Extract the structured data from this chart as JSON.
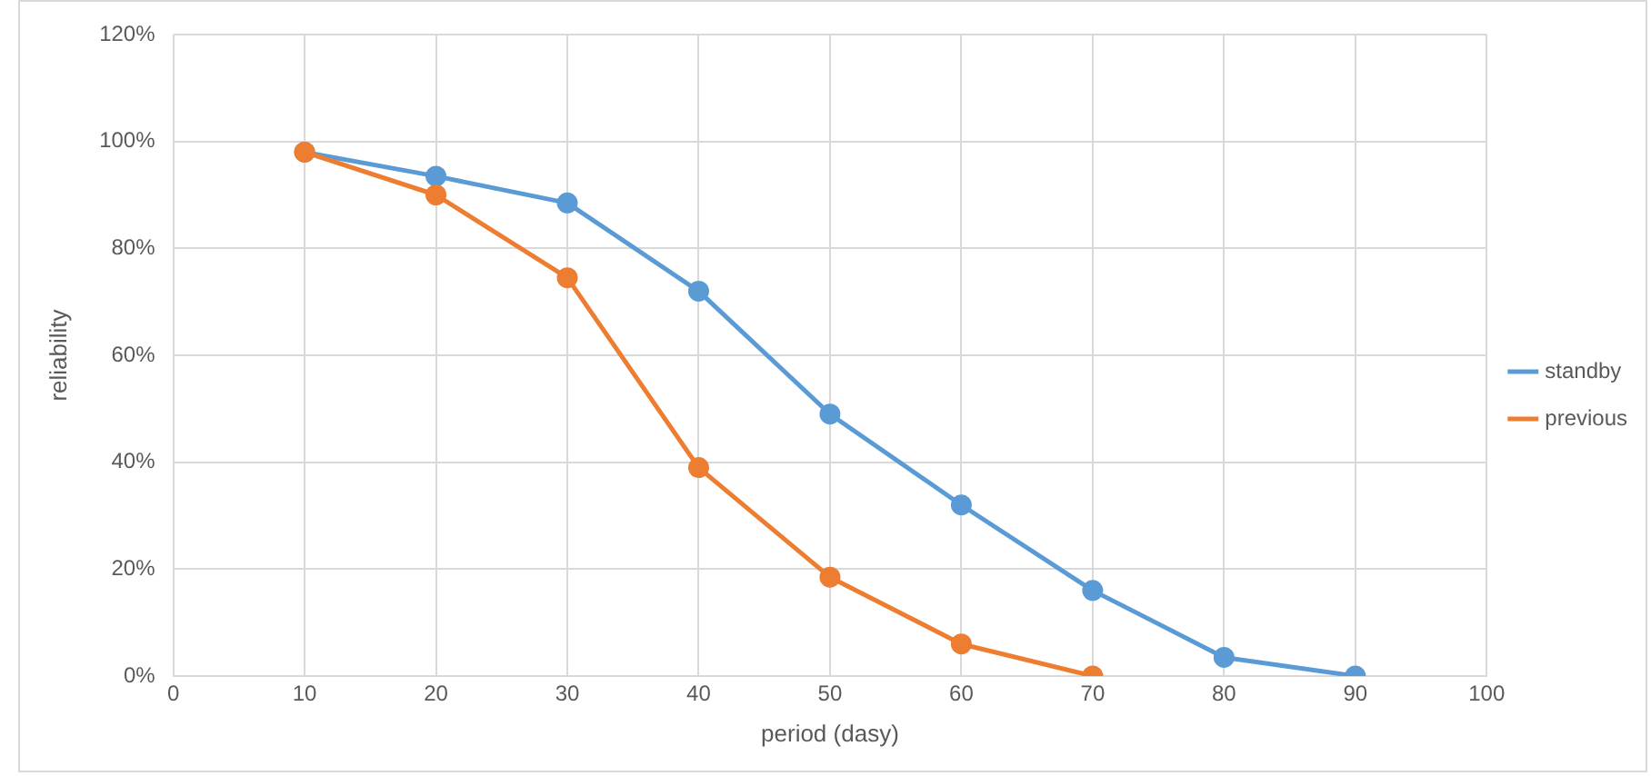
{
  "chart_data": {
    "type": "line",
    "xlabel": "period (dasy)",
    "ylabel": "reliability",
    "x": [
      10,
      20,
      30,
      40,
      50,
      60,
      70,
      80,
      90
    ],
    "series": [
      {
        "name": "standby",
        "color": "#5b9bd5",
        "values": [
          98,
          93.5,
          88.5,
          72,
          49,
          32,
          16,
          3.5,
          0
        ]
      },
      {
        "name": "previous",
        "color": "#ed7d31",
        "values": [
          98,
          90,
          74.5,
          39,
          18.5,
          6,
          0,
          null,
          null
        ]
      }
    ],
    "xlim": [
      0,
      100
    ],
    "xticks": [
      0,
      10,
      20,
      30,
      40,
      50,
      60,
      70,
      80,
      90,
      100
    ],
    "ylim": [
      0,
      120
    ],
    "yticks": [
      {
        "value": 0,
        "label": "0%"
      },
      {
        "value": 20,
        "label": "20%"
      },
      {
        "value": 40,
        "label": "40%"
      },
      {
        "value": 60,
        "label": "60%"
      },
      {
        "value": 80,
        "label": "80%"
      },
      {
        "value": 100,
        "label": "100%"
      },
      {
        "value": 120,
        "label": "120%"
      }
    ],
    "grid": true,
    "legend": "right",
    "marker": "circle",
    "line_style": "solid"
  }
}
